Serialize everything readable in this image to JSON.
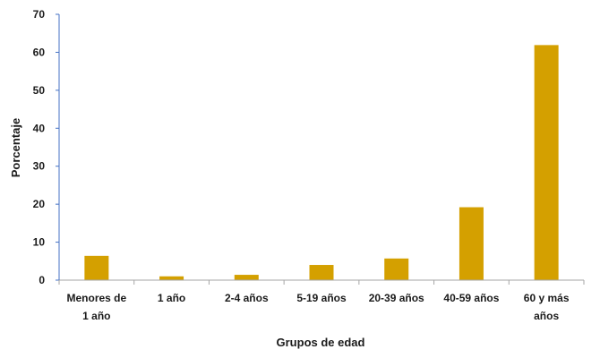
{
  "chart_data": {
    "type": "bar",
    "categories": [
      [
        "Menores de",
        "1 año"
      ],
      [
        "1 año"
      ],
      [
        "2-4 años"
      ],
      [
        "5-19 años"
      ],
      [
        "20-39 años"
      ],
      [
        "40-59 años"
      ],
      [
        "60 y más",
        "años"
      ]
    ],
    "values": [
      6.4,
      1.0,
      1.4,
      4.0,
      5.7,
      19.2,
      61.9
    ],
    "title": "",
    "xlabel": "Grupos de edad",
    "ylabel": "Porcentaje",
    "ylim": [
      0,
      70
    ],
    "yticks": [
      0,
      10,
      20,
      30,
      40,
      50,
      60,
      70
    ],
    "grid": false,
    "legend": "none",
    "colors": {
      "bar": "#D4A000",
      "y_axis": "#4472C4",
      "x_axis": "#A6A6A6",
      "text": "#1a1a1a"
    }
  }
}
